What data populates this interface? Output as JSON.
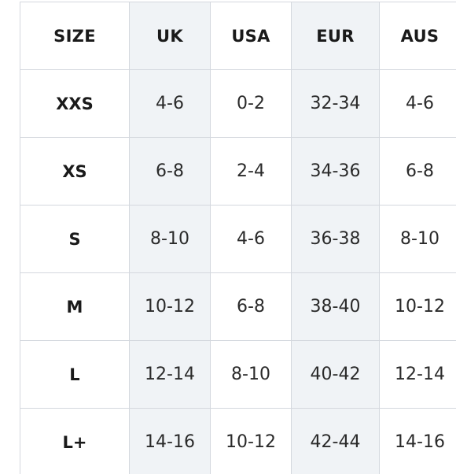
{
  "table": {
    "headers": [
      "SIZE",
      "UK",
      "USA",
      "EUR",
      "AUS"
    ],
    "rows": [
      [
        "XXS",
        "4-6",
        "0-2",
        "32-34",
        "4-6"
      ],
      [
        "XS",
        "6-8",
        "2-4",
        "34-36",
        "6-8"
      ],
      [
        "S",
        "8-10",
        "4-6",
        "36-38",
        "8-10"
      ],
      [
        "M",
        "10-12",
        "6-8",
        "38-40",
        "10-12"
      ],
      [
        "L",
        "12-14",
        "8-10",
        "40-42",
        "12-14"
      ],
      [
        "L+",
        "14-16",
        "10-12",
        "42-44",
        "14-16"
      ]
    ]
  },
  "colors": {
    "shaded_column_bg": "#f0f3f6",
    "border": "#d4d8de",
    "text": "#1a1a1a"
  }
}
